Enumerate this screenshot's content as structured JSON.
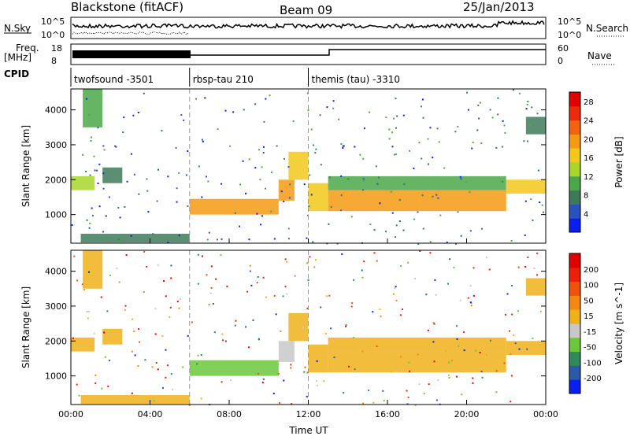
{
  "header": {
    "station": "Blackstone (fitACF)",
    "beam": "Beam 09",
    "date": "25/Jan/2013"
  },
  "strip_labels": {
    "nsky": "N.Sky",
    "nsearch": "N.Search",
    "freq_line1": "Freq.",
    "freq_line2": "[MHz]",
    "nave": "Nave",
    "cpid": "CPID",
    "nsky_top": "10^5",
    "nsky_bottom": "10^0",
    "nsearch_top": "10^5",
    "nsearch_bottom": "10^0",
    "freq_top": "18",
    "freq_bottom": "8",
    "nave_top": "60",
    "nave_bottom": "0"
  },
  "cpid_segments": [
    {
      "label": "twofsound -3501",
      "start_hour": 0,
      "end_hour": 6
    },
    {
      "label": "rbsp-tau 210",
      "start_hour": 6,
      "end_hour": 12
    },
    {
      "label": "themis (tau) -3310",
      "start_hour": 12,
      "end_hour": 24
    }
  ],
  "chart_data": [
    {
      "type": "heatmap",
      "name": "power-panel",
      "xlabel": "Time UT",
      "ylabel": "Slant Range [km]",
      "x_ticks": [
        "00:00",
        "04:00",
        "08:00",
        "12:00",
        "16:00",
        "20:00",
        "00:00"
      ],
      "y_ticks": [
        "1000",
        "2000",
        "3000",
        "4000"
      ],
      "xlim": [
        0,
        24
      ],
      "ylim": [
        180,
        4600
      ],
      "colorbar": {
        "label": "Power [dB]",
        "ticks": [
          "4",
          "8",
          "12",
          "16",
          "20",
          "24",
          "28"
        ],
        "range": [
          0,
          30
        ],
        "colors": [
          "#0a1ef0",
          "#2a52be",
          "#3e7a5a",
          "#4aa84a",
          "#a8d62a",
          "#f2c81a",
          "#f59a12",
          "#f2620f",
          "#ee2a0a",
          "#e00000"
        ]
      },
      "bands": [
        {
          "t": [
            0.0,
            1.2
          ],
          "r": [
            1700,
            2100
          ],
          "level": 14
        },
        {
          "t": [
            0.6,
            1.6
          ],
          "r": [
            3500,
            4600
          ],
          "level": 9
        },
        {
          "t": [
            1.6,
            2.6
          ],
          "r": [
            1900,
            2350
          ],
          "level": 8
        },
        {
          "t": [
            0.5,
            6.0
          ],
          "r": [
            200,
            450
          ],
          "level": 6
        },
        {
          "t": [
            6.0,
            10.5
          ],
          "r": [
            1000,
            1450
          ],
          "level": 19
        },
        {
          "t": [
            10.5,
            11.3
          ],
          "r": [
            1400,
            2000
          ],
          "level": 18
        },
        {
          "t": [
            11.0,
            12.0
          ],
          "r": [
            2000,
            2800
          ],
          "level": 16
        },
        {
          "t": [
            12.0,
            13.0
          ],
          "r": [
            1100,
            1900
          ],
          "level": 17
        },
        {
          "t": [
            13.0,
            22.0
          ],
          "r": [
            1100,
            1700
          ],
          "level": 20
        },
        {
          "t": [
            13.0,
            22.0
          ],
          "r": [
            1700,
            2100
          ],
          "level": 10
        },
        {
          "t": [
            22.0,
            24.0
          ],
          "r": [
            1600,
            2000
          ],
          "level": 16
        },
        {
          "t": [
            23.0,
            24.0
          ],
          "r": [
            3300,
            3800
          ],
          "level": 8
        }
      ]
    },
    {
      "type": "heatmap",
      "name": "velocity-panel",
      "xlabel": "Time UT",
      "ylabel": "Slant Range [km]",
      "x_ticks": [
        "00:00",
        "04:00",
        "08:00",
        "12:00",
        "16:00",
        "20:00",
        "00:00"
      ],
      "y_ticks": [
        "1000",
        "2000",
        "3000",
        "4000"
      ],
      "xlim": [
        0,
        24
      ],
      "ylim": [
        180,
        4600
      ],
      "colorbar": {
        "label": "Velocity [m s^-1]",
        "ticks": [
          "200",
          "100",
          "50",
          "15",
          "-15",
          "-50",
          "-100",
          "-200"
        ],
        "range": [
          -250,
          250
        ],
        "colors": [
          "#0a1ef0",
          "#2a5aa8",
          "#2f8a5a",
          "#6bc83a",
          "#c8c8c8",
          "#f0b01a",
          "#f5880f",
          "#f0520c",
          "#ec2008",
          "#e00000"
        ]
      },
      "bands": [
        {
          "t": [
            0.0,
            1.2
          ],
          "r": [
            1700,
            2100
          ],
          "level": 0
        },
        {
          "t": [
            0.6,
            1.6
          ],
          "r": [
            3500,
            4600
          ],
          "level": 0
        },
        {
          "t": [
            1.6,
            2.6
          ],
          "r": [
            1900,
            2350
          ],
          "level": 0
        },
        {
          "t": [
            0.5,
            6.0
          ],
          "r": [
            200,
            450
          ],
          "level": 20
        },
        {
          "t": [
            6.0,
            10.5
          ],
          "r": [
            1000,
            1450
          ],
          "level": -60
        },
        {
          "t": [
            10.5,
            11.3
          ],
          "r": [
            1400,
            2000
          ],
          "level": -30
        },
        {
          "t": [
            11.0,
            12.0
          ],
          "r": [
            2000,
            2800
          ],
          "level": 20
        },
        {
          "t": [
            12.0,
            13.0
          ],
          "r": [
            1100,
            1900
          ],
          "level": 0
        },
        {
          "t": [
            13.0,
            22.0
          ],
          "r": [
            1100,
            1700
          ],
          "level": 0
        },
        {
          "t": [
            13.0,
            22.0
          ],
          "r": [
            1700,
            2100
          ],
          "level": 20
        },
        {
          "t": [
            22.0,
            24.0
          ],
          "r": [
            1600,
            2000
          ],
          "level": 0
        },
        {
          "t": [
            23.0,
            24.0
          ],
          "r": [
            3300,
            3800
          ],
          "level": 0
        }
      ]
    }
  ]
}
